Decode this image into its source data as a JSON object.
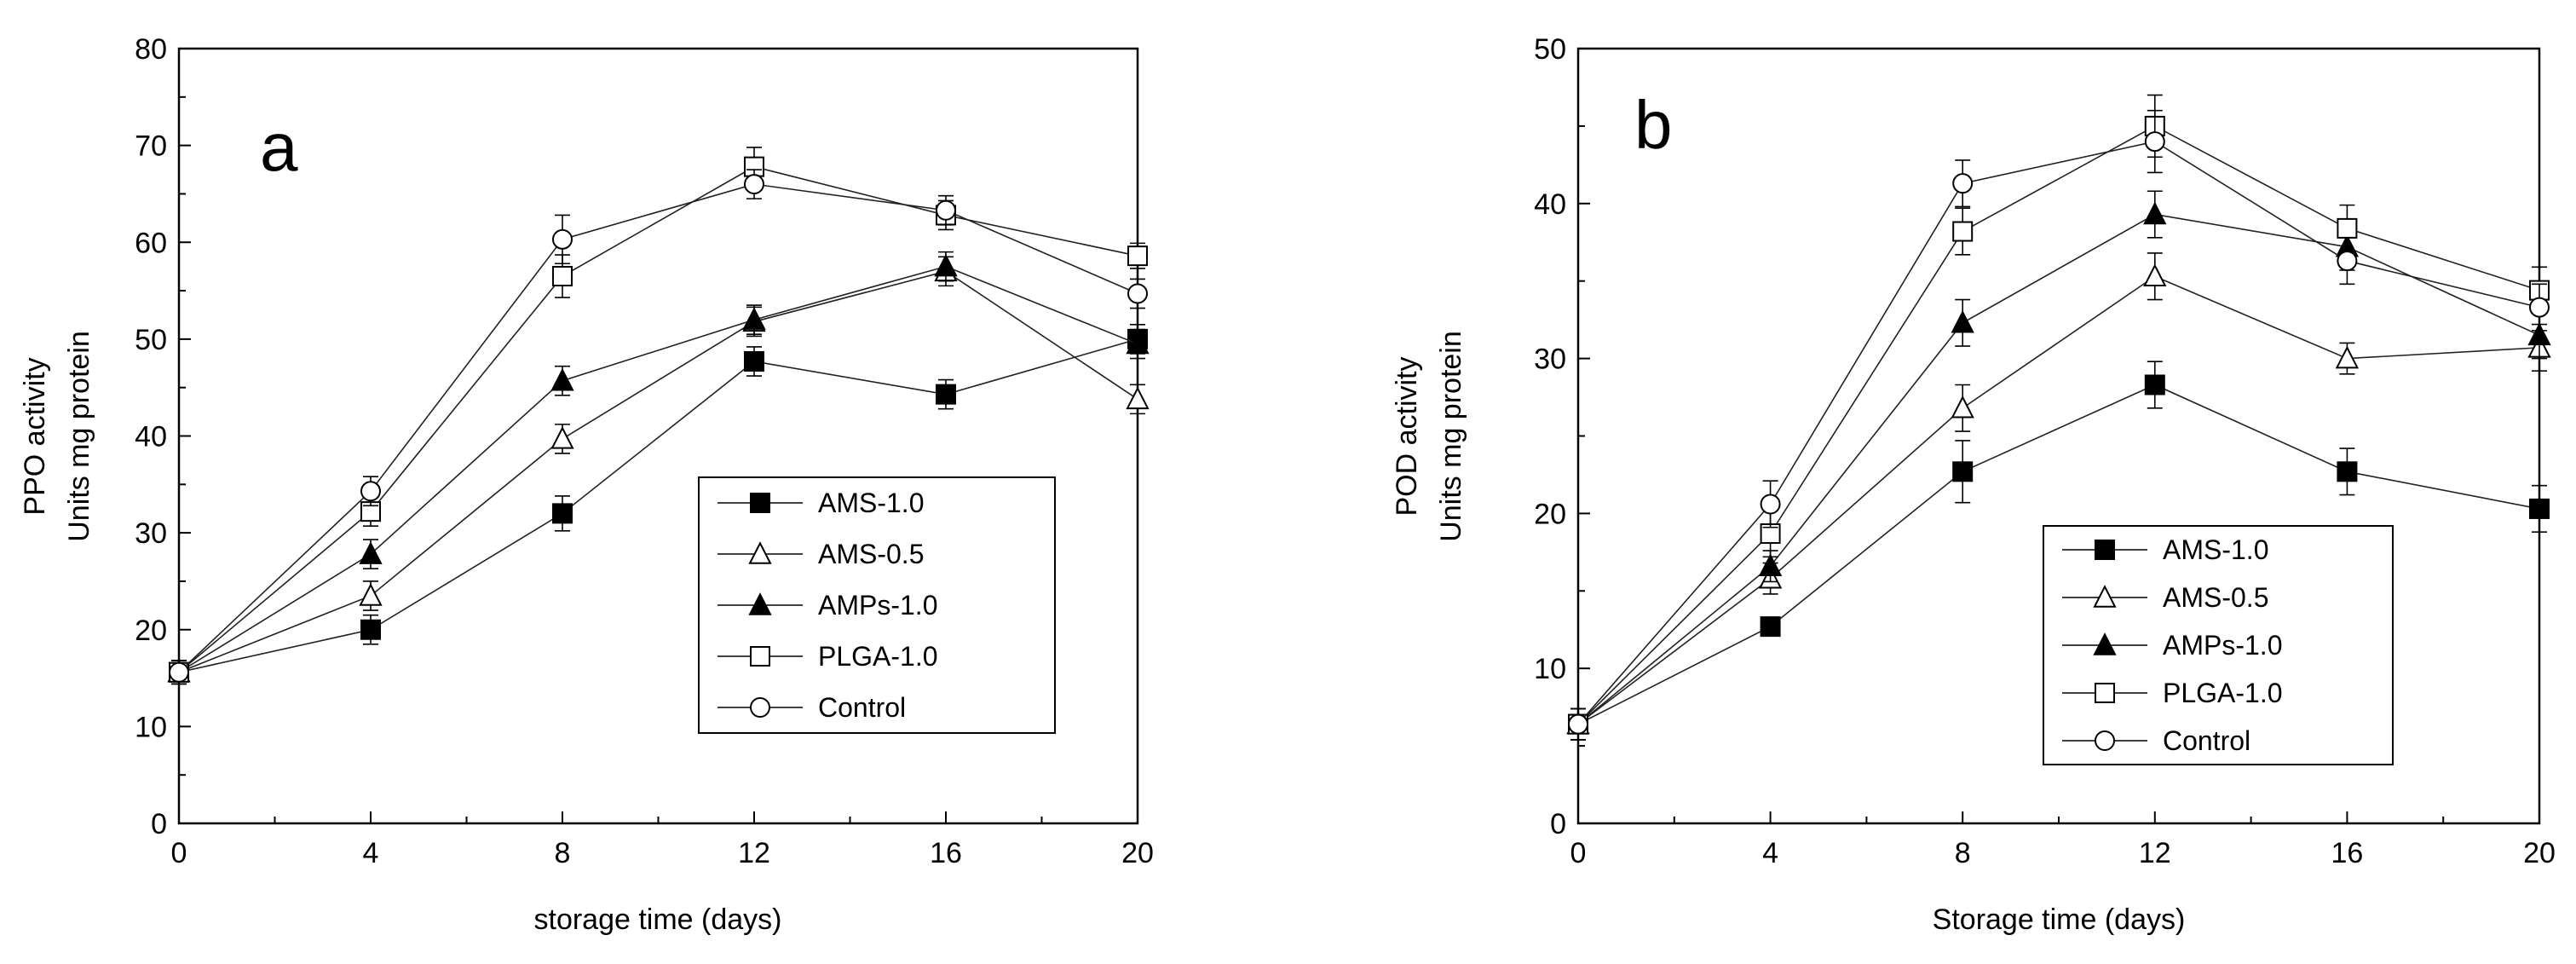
{
  "chart_data": [
    {
      "type": "line",
      "panel_label": "a",
      "ylabel_lines": [
        "PPO  activity",
        "Units mg protein"
      ],
      "xlabel": "storage time (days)",
      "x": [
        0,
        4,
        8,
        12,
        16,
        20
      ],
      "xticks": [
        "0",
        "4",
        "8",
        "12",
        "16",
        "20"
      ],
      "yticks": [
        "0",
        "10",
        "20",
        "30",
        "40",
        "50",
        "60",
        "70",
        "80"
      ],
      "xlim": [
        0,
        20
      ],
      "ylim": [
        0,
        80
      ],
      "grid": false,
      "legend_position": "center-right",
      "series": [
        {
          "name": "AMS-1.0",
          "marker": "filled-square",
          "values": [
            15.6,
            20.0,
            32.0,
            47.7,
            44.3,
            50.0
          ],
          "errors": [
            1.2,
            1.5,
            1.8,
            1.5,
            1.5,
            1.5
          ]
        },
        {
          "name": "AMS-0.5",
          "marker": "open-triangle",
          "values": [
            15.6,
            23.5,
            39.7,
            51.8,
            57.0,
            43.8
          ],
          "errors": [
            1.2,
            1.5,
            1.5,
            1.5,
            1.5,
            1.5
          ]
        },
        {
          "name": "AMPs-1.0",
          "marker": "filled-triangle",
          "values": [
            15.6,
            27.8,
            45.7,
            52.0,
            57.5,
            49.5
          ],
          "errors": [
            1.2,
            1.5,
            1.5,
            1.5,
            1.5,
            1.5
          ]
        },
        {
          "name": "PLGA-1.0",
          "marker": "open-square",
          "values": [
            15.6,
            32.2,
            56.5,
            67.8,
            62.8,
            58.6
          ],
          "errors": [
            1.2,
            1.5,
            2.2,
            2.0,
            1.5,
            1.3
          ]
        },
        {
          "name": "Control",
          "marker": "open-circle",
          "values": [
            15.6,
            34.3,
            60.3,
            66.0,
            63.3,
            54.7
          ],
          "errors": [
            1.2,
            1.5,
            2.5,
            1.5,
            1.5,
            1.5
          ]
        }
      ]
    },
    {
      "type": "line",
      "panel_label": "b",
      "ylabel_lines": [
        "POD activity",
        "Units mg protein"
      ],
      "xlabel": "Storage time (days)",
      "x": [
        0,
        4,
        8,
        12,
        16,
        20
      ],
      "xticks": [
        "0",
        "4",
        "8",
        "12",
        "16",
        "20"
      ],
      "yticks": [
        "0",
        "10",
        "20",
        "30",
        "40",
        "50"
      ],
      "xlim": [
        0,
        20
      ],
      "ylim": [
        0,
        50
      ],
      "grid": false,
      "legend_position": "bottom-center",
      "series": [
        {
          "name": "AMS-1.0",
          "marker": "filled-square",
          "values": [
            6.4,
            12.7,
            22.7,
            28.3,
            22.7,
            20.3
          ],
          "errors": [
            1.0,
            0.5,
            2.0,
            1.5,
            1.5,
            1.5
          ]
        },
        {
          "name": "AMS-0.5",
          "marker": "open-triangle",
          "values": [
            6.4,
            15.8,
            26.8,
            35.3,
            30.0,
            30.7
          ],
          "errors": [
            1.0,
            1.0,
            1.5,
            1.5,
            1.0,
            1.5
          ]
        },
        {
          "name": "AMPs-1.0",
          "marker": "filled-triangle",
          "values": [
            6.4,
            16.6,
            32.3,
            39.3,
            37.2,
            31.5
          ],
          "errors": [
            1.0,
            1.0,
            1.5,
            1.5,
            1.5,
            1.5
          ]
        },
        {
          "name": "PLGA-1.0",
          "marker": "open-square",
          "values": [
            6.4,
            18.7,
            38.2,
            45.0,
            38.4,
            34.4
          ],
          "errors": [
            1.0,
            1.5,
            1.5,
            2.0,
            1.5,
            1.5
          ]
        },
        {
          "name": "Control",
          "marker": "open-circle",
          "values": [
            6.4,
            20.6,
            41.3,
            44.0,
            36.3,
            33.3
          ],
          "errors": [
            1.0,
            1.5,
            1.5,
            2.0,
            1.5,
            1.5
          ]
        }
      ]
    }
  ]
}
